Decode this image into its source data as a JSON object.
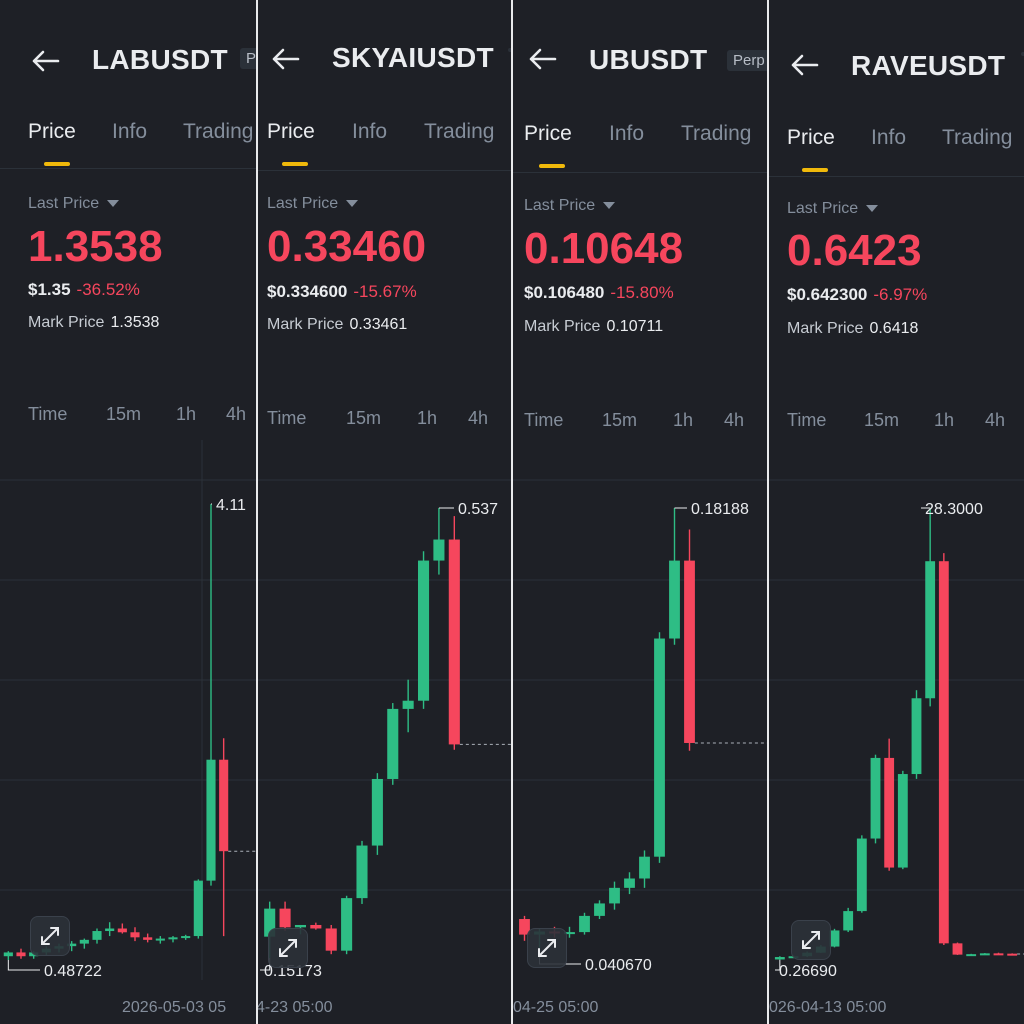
{
  "colors": {
    "up": "#2ebd85",
    "down": "#f6465d",
    "accent": "#f0b90b",
    "bg": "#1e2026"
  },
  "panels": [
    {
      "symbol": "LABUSDT",
      "perp_label": "P",
      "tabs": [
        "Price",
        "Info",
        "Trading"
      ],
      "last_price_label": "Last Price",
      "last_price": "1.3538",
      "usd_price": "$1.35",
      "change": "-36.52%",
      "mark_label": "Mark Price",
      "mark_price": "1.3538",
      "intervals": [
        "Time",
        "15m",
        "1h",
        "4h"
      ],
      "high_label": "4.11",
      "low_label": "0.48722",
      "date_label": "2026-05-03 05",
      "chart_data": {
        "type": "candlestick",
        "high_label": "4.11",
        "low_label": "0.48722",
        "last": 1.3538,
        "candles": [
          {
            "o": 0.52,
            "h": 0.56,
            "l": 0.49,
            "c": 0.55
          },
          {
            "o": 0.55,
            "h": 0.58,
            "l": 0.5,
            "c": 0.52
          },
          {
            "o": 0.52,
            "h": 0.56,
            "l": 0.5,
            "c": 0.55
          },
          {
            "o": 0.55,
            "h": 0.6,
            "l": 0.53,
            "c": 0.58
          },
          {
            "o": 0.58,
            "h": 0.62,
            "l": 0.55,
            "c": 0.6
          },
          {
            "o": 0.6,
            "h": 0.64,
            "l": 0.56,
            "c": 0.62
          },
          {
            "o": 0.62,
            "h": 0.66,
            "l": 0.58,
            "c": 0.65
          },
          {
            "o": 0.65,
            "h": 0.74,
            "l": 0.62,
            "c": 0.72
          },
          {
            "o": 0.72,
            "h": 0.79,
            "l": 0.68,
            "c": 0.74
          },
          {
            "o": 0.74,
            "h": 0.78,
            "l": 0.7,
            "c": 0.71
          },
          {
            "o": 0.71,
            "h": 0.75,
            "l": 0.64,
            "c": 0.67
          },
          {
            "o": 0.67,
            "h": 0.7,
            "l": 0.63,
            "c": 0.65
          },
          {
            "o": 0.65,
            "h": 0.68,
            "l": 0.62,
            "c": 0.66
          },
          {
            "o": 0.66,
            "h": 0.68,
            "l": 0.63,
            "c": 0.67
          },
          {
            "o": 0.67,
            "h": 0.69,
            "l": 0.65,
            "c": 0.68
          },
          {
            "o": 0.68,
            "h": 1.13,
            "l": 0.66,
            "c": 1.12
          },
          {
            "o": 1.12,
            "h": 4.11,
            "l": 1.08,
            "c": 2.08
          },
          {
            "o": 2.08,
            "h": 2.25,
            "l": 0.68,
            "c": 1.3538
          }
        ]
      }
    },
    {
      "symbol": "SKYAIUSDT",
      "perp_label": "",
      "tabs": [
        "Price",
        "Info",
        "Trading"
      ],
      "last_price_label": "Last Price",
      "last_price": "0.33460",
      "usd_price": "$0.334600",
      "change": "-15.67%",
      "mark_label": "Mark Price",
      "mark_price": "0.33461",
      "intervals": [
        "Time",
        "15m",
        "1h",
        "4h"
      ],
      "high_label": "0.537",
      "low_label": "0.15173",
      "date_label": "4-23 05:00",
      "chart_data": {
        "type": "candlestick",
        "high_label": "0.537",
        "low_label": "0.15173",
        "last": 0.3346,
        "candles": [
          {
            "o": 0.17,
            "h": 0.2,
            "l": 0.15173,
            "c": 0.194
          },
          {
            "o": 0.194,
            "h": 0.2,
            "l": 0.175,
            "c": 0.178
          },
          {
            "o": 0.178,
            "h": 0.18,
            "l": 0.172,
            "c": 0.18
          },
          {
            "o": 0.18,
            "h": 0.182,
            "l": 0.176,
            "c": 0.177
          },
          {
            "o": 0.177,
            "h": 0.18,
            "l": 0.155,
            "c": 0.158
          },
          {
            "o": 0.158,
            "h": 0.205,
            "l": 0.155,
            "c": 0.203
          },
          {
            "o": 0.203,
            "h": 0.252,
            "l": 0.198,
            "c": 0.248
          },
          {
            "o": 0.248,
            "h": 0.31,
            "l": 0.24,
            "c": 0.305
          },
          {
            "o": 0.305,
            "h": 0.37,
            "l": 0.3,
            "c": 0.365
          },
          {
            "o": 0.365,
            "h": 0.39,
            "l": 0.345,
            "c": 0.372
          },
          {
            "o": 0.372,
            "h": 0.5,
            "l": 0.365,
            "c": 0.492
          },
          {
            "o": 0.492,
            "h": 0.537,
            "l": 0.48,
            "c": 0.51
          },
          {
            "o": 0.51,
            "h": 0.53,
            "l": 0.33,
            "c": 0.3346
          }
        ]
      }
    },
    {
      "symbol": "UBUSDT",
      "perp_label": "Perp",
      "tabs": [
        "Price",
        "Info",
        "Trading"
      ],
      "last_price_label": "Last Price",
      "last_price": "0.10648",
      "usd_price": "$0.106480",
      "change": "-15.80%",
      "mark_label": "Mark Price",
      "mark_price": "0.10711",
      "intervals": [
        "Time",
        "15m",
        "1h",
        "4h"
      ],
      "high_label": "0.18188",
      "low_label": "0.040670",
      "date_label": "04-25 05:00",
      "chart_data": {
        "type": "candlestick",
        "high_label": "0.18188",
        "low_label": "0.040670",
        "last": 0.10648,
        "candles": [
          {
            "o": 0.05,
            "h": 0.051,
            "l": 0.043,
            "c": 0.045
          },
          {
            "o": 0.045,
            "h": 0.047,
            "l": 0.0407,
            "c": 0.046
          },
          {
            "o": 0.046,
            "h": 0.0475,
            "l": 0.044,
            "c": 0.0457
          },
          {
            "o": 0.0457,
            "h": 0.0475,
            "l": 0.044,
            "c": 0.0458
          },
          {
            "o": 0.0458,
            "h": 0.052,
            "l": 0.045,
            "c": 0.051
          },
          {
            "o": 0.051,
            "h": 0.056,
            "l": 0.05,
            "c": 0.055
          },
          {
            "o": 0.055,
            "h": 0.062,
            "l": 0.053,
            "c": 0.06
          },
          {
            "o": 0.06,
            "h": 0.065,
            "l": 0.058,
            "c": 0.063
          },
          {
            "o": 0.063,
            "h": 0.072,
            "l": 0.06,
            "c": 0.07
          },
          {
            "o": 0.07,
            "h": 0.142,
            "l": 0.068,
            "c": 0.14
          },
          {
            "o": 0.14,
            "h": 0.18188,
            "l": 0.138,
            "c": 0.165
          },
          {
            "o": 0.165,
            "h": 0.175,
            "l": 0.104,
            "c": 0.10648
          }
        ]
      }
    },
    {
      "symbol": "RAVEUSDT",
      "perp_label": "",
      "tabs": [
        "Price",
        "Info",
        "Trading"
      ],
      "last_price_label": "Last Price",
      "last_price": "0.6423",
      "usd_price": "$0.642300",
      "change": "-6.97%",
      "mark_label": "Mark Price",
      "mark_price": "0.6418",
      "intervals": [
        "Time",
        "15m",
        "1h",
        "4h"
      ],
      "high_label": "28.3000",
      "low_label": "0.26690",
      "date_label": "026-04-13 05:00",
      "chart_data": {
        "type": "candlestick",
        "high_label": "28.3000",
        "low_label": "0.26690",
        "last": 0.6423,
        "candles": [
          {
            "o": 0.3,
            "h": 0.5,
            "l": 0.2669,
            "c": 0.45
          },
          {
            "o": 0.45,
            "h": 0.55,
            "l": 0.4,
            "c": 0.5
          },
          {
            "o": 0.5,
            "h": 0.8,
            "l": 0.45,
            "c": 0.72
          },
          {
            "o": 0.72,
            "h": 1.2,
            "l": 0.7,
            "c": 1.1
          },
          {
            "o": 1.1,
            "h": 2.2,
            "l": 1.05,
            "c": 2.1
          },
          {
            "o": 2.1,
            "h": 3.5,
            "l": 2.0,
            "c": 3.3
          },
          {
            "o": 3.3,
            "h": 8.0,
            "l": 3.2,
            "c": 7.8
          },
          {
            "o": 7.8,
            "h": 13.0,
            "l": 7.5,
            "c": 12.8
          },
          {
            "o": 12.8,
            "h": 14.0,
            "l": 5.8,
            "c": 6.0
          },
          {
            "o": 6.0,
            "h": 12.0,
            "l": 5.9,
            "c": 11.8
          },
          {
            "o": 11.8,
            "h": 17.0,
            "l": 11.5,
            "c": 16.5
          },
          {
            "o": 16.5,
            "h": 28.3,
            "l": 16.0,
            "c": 25.0
          },
          {
            "o": 25.0,
            "h": 25.5,
            "l": 1.2,
            "c": 1.3
          },
          {
            "o": 1.3,
            "h": 1.35,
            "l": 0.58,
            "c": 0.6
          },
          {
            "o": 0.6,
            "h": 0.65,
            "l": 0.55,
            "c": 0.63
          },
          {
            "o": 0.63,
            "h": 0.7,
            "l": 0.6,
            "c": 0.68
          },
          {
            "o": 0.68,
            "h": 0.72,
            "l": 0.62,
            "c": 0.66
          },
          {
            "o": 0.66,
            "h": 0.68,
            "l": 0.6,
            "c": 0.6423
          }
        ]
      }
    }
  ]
}
